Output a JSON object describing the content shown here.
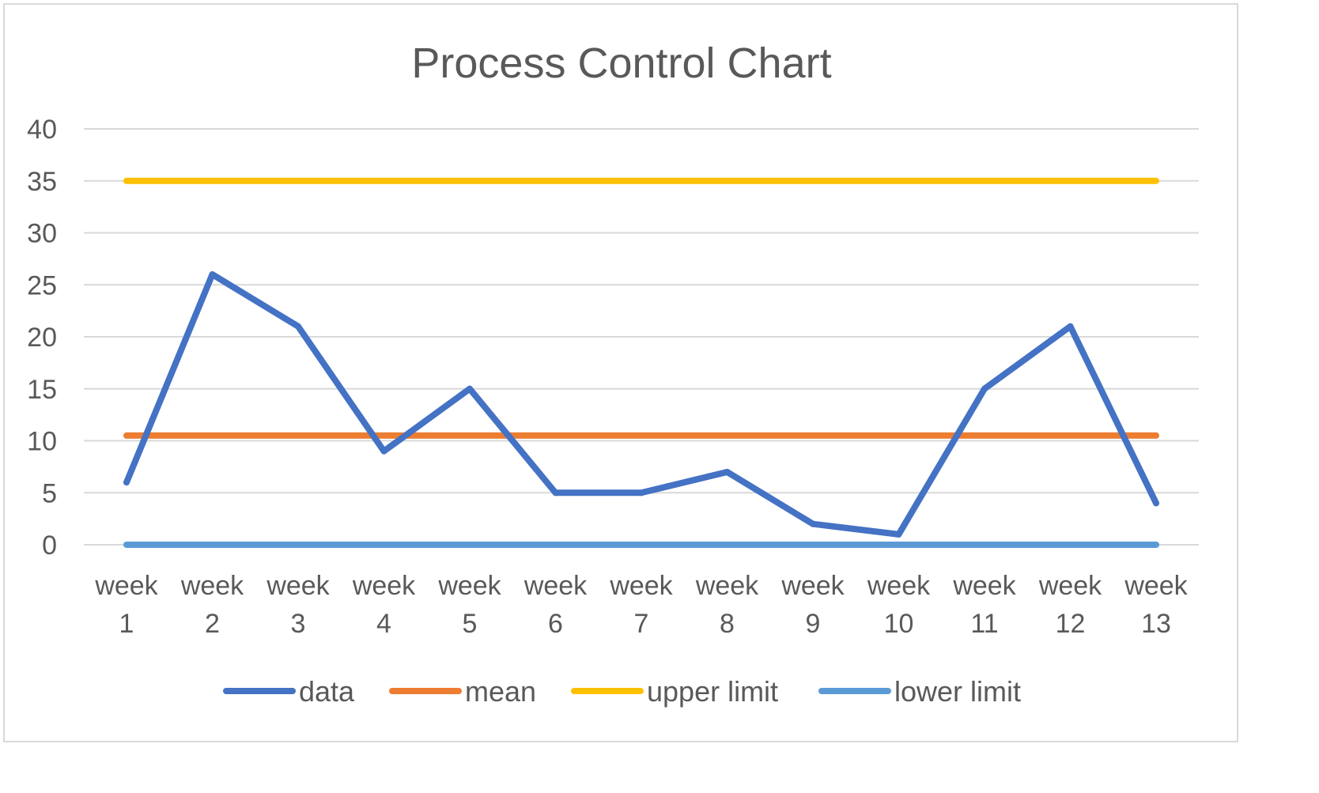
{
  "chart_data": {
    "type": "line",
    "title": "Process Control Chart",
    "categories": [
      [
        "week",
        "1"
      ],
      [
        "week",
        "2"
      ],
      [
        "week",
        "3"
      ],
      [
        "week",
        "4"
      ],
      [
        "week",
        "5"
      ],
      [
        "week",
        "6"
      ],
      [
        "week",
        "7"
      ],
      [
        "week",
        "8"
      ],
      [
        "week",
        "9"
      ],
      [
        "week",
        "10"
      ],
      [
        "week",
        "11"
      ],
      [
        "week",
        "12"
      ],
      [
        "week",
        "13"
      ]
    ],
    "series": [
      {
        "name": "data",
        "color": "#4472c4",
        "values": [
          6,
          26,
          21,
          9,
          15,
          5,
          5,
          7,
          2,
          1,
          15,
          21,
          4
        ]
      },
      {
        "name": "mean",
        "color": "#ed7d31",
        "values": [
          10.5,
          10.5,
          10.5,
          10.5,
          10.5,
          10.5,
          10.5,
          10.5,
          10.5,
          10.5,
          10.5,
          10.5,
          10.5
        ]
      },
      {
        "name": "upper limit",
        "color": "#ffc000",
        "values": [
          35,
          35,
          35,
          35,
          35,
          35,
          35,
          35,
          35,
          35,
          35,
          35,
          35
        ]
      },
      {
        "name": "lower limit",
        "color": "#5b9bd5",
        "values": [
          0,
          0,
          0,
          0,
          0,
          0,
          0,
          0,
          0,
          0,
          0,
          0,
          0
        ]
      }
    ],
    "y_ticks": [
      "0",
      "5",
      "10",
      "15",
      "20",
      "25",
      "30",
      "35",
      "40"
    ],
    "ylim": [
      0,
      40
    ],
    "grid": true,
    "legend_position": "bottom"
  }
}
